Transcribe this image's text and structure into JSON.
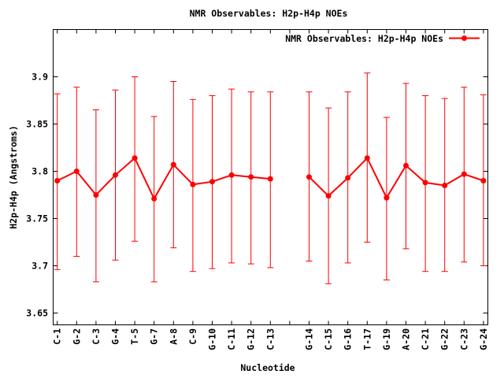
{
  "title": "NMR Observables: H2p-H4p NOEs",
  "colors": {
    "series": "#ff0000",
    "axis": "#000000",
    "text": "#000000",
    "background": "#ffffff"
  },
  "chart_data": {
    "type": "line",
    "title": "NMR Observables: H2p-H4p NOEs",
    "xlabel": "Nucleotide",
    "ylabel": "H2p-H4p (Angstroms)",
    "legend": {
      "label": "NMR Observables: H2p-H4p NOEs",
      "position": "top-right-inside"
    },
    "grid": false,
    "error_bars": true,
    "ylim": [
      3.6375,
      3.95
    ],
    "yticks": {
      "values": [
        3.65,
        3.7,
        3.75,
        3.8,
        3.85,
        3.9
      ],
      "labels": [
        "3.65",
        "3.7",
        "3.75",
        "3.8",
        "3.85",
        "3.9"
      ]
    },
    "x_slots": 23,
    "x_gap_note": "one unlabeled empty slot between C-13 and G-14",
    "categories": [
      "C-1",
      "G-2",
      "C-3",
      "G-4",
      "T-5",
      "G-7",
      "A-8",
      "C-9",
      "G-10",
      "C-11",
      "G-12",
      "C-13",
      "G-14",
      "C-15",
      "G-16",
      "T-17",
      "G-19",
      "A-20",
      "C-21",
      "G-22",
      "C-23",
      "G-24"
    ],
    "series": [
      {
        "name": "NMR Observables: H2p-H4p NOEs",
        "color": "#ff0000",
        "marker": "filled-circle",
        "points": [
          {
            "label": "C-1",
            "slot": 0,
            "y": 3.79,
            "y_low": 3.696,
            "y_high": 3.882
          },
          {
            "label": "G-2",
            "slot": 1,
            "y": 3.8,
            "y_low": 3.71,
            "y_high": 3.889
          },
          {
            "label": "C-3",
            "slot": 2,
            "y": 3.775,
            "y_low": 3.683,
            "y_high": 3.865
          },
          {
            "label": "G-4",
            "slot": 3,
            "y": 3.796,
            "y_low": 3.706,
            "y_high": 3.886
          },
          {
            "label": "T-5",
            "slot": 4,
            "y": 3.814,
            "y_low": 3.726,
            "y_high": 3.9
          },
          {
            "label": "G-7",
            "slot": 5,
            "y": 3.771,
            "y_low": 3.683,
            "y_high": 3.858
          },
          {
            "label": "A-8",
            "slot": 6,
            "y": 3.807,
            "y_low": 3.719,
            "y_high": 3.895
          },
          {
            "label": "C-9",
            "slot": 7,
            "y": 3.786,
            "y_low": 3.694,
            "y_high": 3.876
          },
          {
            "label": "G-10",
            "slot": 8,
            "y": 3.789,
            "y_low": 3.697,
            "y_high": 3.88
          },
          {
            "label": "C-11",
            "slot": 9,
            "y": 3.796,
            "y_low": 3.703,
            "y_high": 3.887
          },
          {
            "label": "G-12",
            "slot": 10,
            "y": 3.794,
            "y_low": 3.702,
            "y_high": 3.884
          },
          {
            "label": "C-13",
            "slot": 11,
            "y": 3.792,
            "y_low": 3.698,
            "y_high": 3.884
          },
          {
            "label": "G-14",
            "slot": 13,
            "y": 3.794,
            "y_low": 3.705,
            "y_high": 3.884
          },
          {
            "label": "C-15",
            "slot": 14,
            "y": 3.774,
            "y_low": 3.681,
            "y_high": 3.867
          },
          {
            "label": "G-16",
            "slot": 15,
            "y": 3.793,
            "y_low": 3.703,
            "y_high": 3.884
          },
          {
            "label": "T-17",
            "slot": 16,
            "y": 3.814,
            "y_low": 3.725,
            "y_high": 3.904
          },
          {
            "label": "G-19",
            "slot": 17,
            "y": 3.772,
            "y_low": 3.685,
            "y_high": 3.857
          },
          {
            "label": "A-20",
            "slot": 18,
            "y": 3.806,
            "y_low": 3.718,
            "y_high": 3.893
          },
          {
            "label": "C-21",
            "slot": 19,
            "y": 3.788,
            "y_low": 3.694,
            "y_high": 3.88
          },
          {
            "label": "G-22",
            "slot": 20,
            "y": 3.785,
            "y_low": 3.694,
            "y_high": 3.877
          },
          {
            "label": "C-23",
            "slot": 21,
            "y": 3.797,
            "y_low": 3.704,
            "y_high": 3.889
          },
          {
            "label": "G-24",
            "slot": 22,
            "y": 3.79,
            "y_low": 3.7,
            "y_high": 3.881
          }
        ]
      }
    ]
  }
}
